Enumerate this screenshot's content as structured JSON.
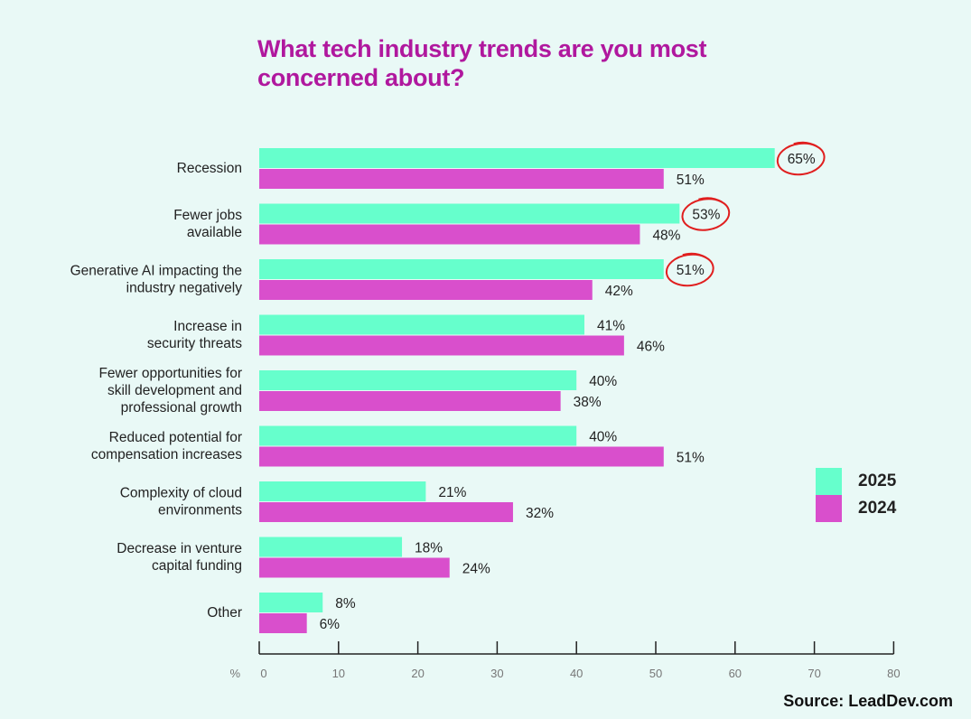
{
  "chart_data": {
    "type": "bar",
    "orientation": "horizontal",
    "title": "What tech industry trends are you most concerned about?",
    "source": "Source: LeadDev.com",
    "xlabel": "%",
    "xlim": [
      0,
      80
    ],
    "xticks": [
      0,
      10,
      20,
      30,
      40,
      50,
      60,
      70,
      80
    ],
    "grid": false,
    "legend_position": "right",
    "categories": [
      [
        "Recession"
      ],
      [
        "Fewer jobs",
        "available"
      ],
      [
        "Generative AI impacting the",
        "industry negatively"
      ],
      [
        "Increase in",
        "security threats"
      ],
      [
        "Fewer opportunities for",
        "skill development and",
        "professional growth"
      ],
      [
        "Reduced potential for",
        "compensation increases"
      ],
      [
        "Complexity of cloud",
        "environments"
      ],
      [
        "Decrease in venture",
        "capital funding"
      ],
      [
        "Other"
      ]
    ],
    "series": [
      {
        "name": "2025",
        "color": "#66ffcc",
        "values": [
          65,
          53,
          51,
          41,
          40,
          40,
          21,
          18,
          8
        ]
      },
      {
        "name": "2024",
        "color": "#d94fcc",
        "values": [
          51,
          48,
          42,
          46,
          38,
          51,
          32,
          24,
          6
        ]
      }
    ],
    "annotations": {
      "circled_series": "2025",
      "circled_indices": [
        0,
        1,
        2
      ],
      "circle_color": "#e01f1f"
    }
  }
}
